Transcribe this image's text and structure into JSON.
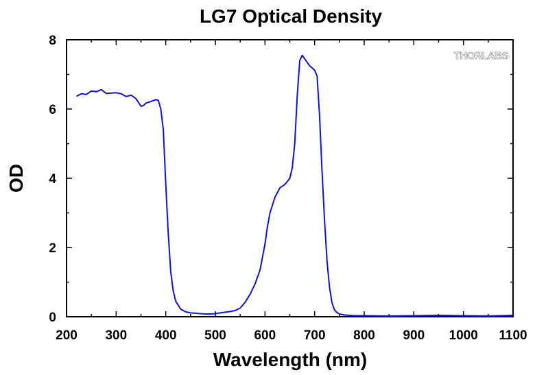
{
  "chart_data": {
    "type": "line",
    "title": "LG7 Optical Density",
    "xlabel": "Wavelength (nm)",
    "ylabel": "OD",
    "xlim": [
      200,
      1100
    ],
    "ylim": [
      0,
      8
    ],
    "x_ticks": [
      "200",
      "300",
      "400",
      "500",
      "600",
      "700",
      "800",
      "900",
      "1000",
      "1100"
    ],
    "y_ticks": [
      "0",
      "2",
      "4",
      "6",
      "8"
    ],
    "grid": false,
    "legend": "none",
    "series": [
      {
        "color": "#1010e0",
        "x": [
          220,
          230,
          240,
          250,
          260,
          270,
          280,
          290,
          300,
          310,
          320,
          330,
          340,
          350,
          355,
          360,
          370,
          380,
          385,
          390,
          395,
          400,
          405,
          410,
          415,
          420,
          430,
          440,
          450,
          460,
          470,
          480,
          490,
          500,
          510,
          520,
          530,
          540,
          550,
          560,
          570,
          580,
          590,
          600,
          605,
          610,
          620,
          630,
          640,
          650,
          655,
          660,
          665,
          670,
          675,
          680,
          690,
          700,
          705,
          710,
          715,
          720,
          725,
          730,
          735,
          740,
          745,
          750,
          760,
          780,
          800,
          850,
          900,
          950,
          1000,
          1050,
          1100
        ],
        "y": [
          6.37,
          6.44,
          6.42,
          6.52,
          6.5,
          6.56,
          6.45,
          6.46,
          6.47,
          6.44,
          6.36,
          6.4,
          6.3,
          6.08,
          6.1,
          6.17,
          6.22,
          6.27,
          6.25,
          6.0,
          5.4,
          3.8,
          2.4,
          1.3,
          0.75,
          0.45,
          0.22,
          0.14,
          0.11,
          0.1,
          0.09,
          0.08,
          0.08,
          0.09,
          0.11,
          0.13,
          0.15,
          0.18,
          0.25,
          0.42,
          0.65,
          0.95,
          1.35,
          2.1,
          2.6,
          3.0,
          3.45,
          3.72,
          3.82,
          4.0,
          4.3,
          5.0,
          6.4,
          7.4,
          7.55,
          7.45,
          7.25,
          7.12,
          6.95,
          5.8,
          4.2,
          2.8,
          1.6,
          0.85,
          0.4,
          0.2,
          0.12,
          0.08,
          0.05,
          0.03,
          0.03,
          0.02,
          0.03,
          0.04,
          0.03,
          0.02,
          0.04
        ]
      }
    ]
  },
  "watermark": "THORLABS"
}
